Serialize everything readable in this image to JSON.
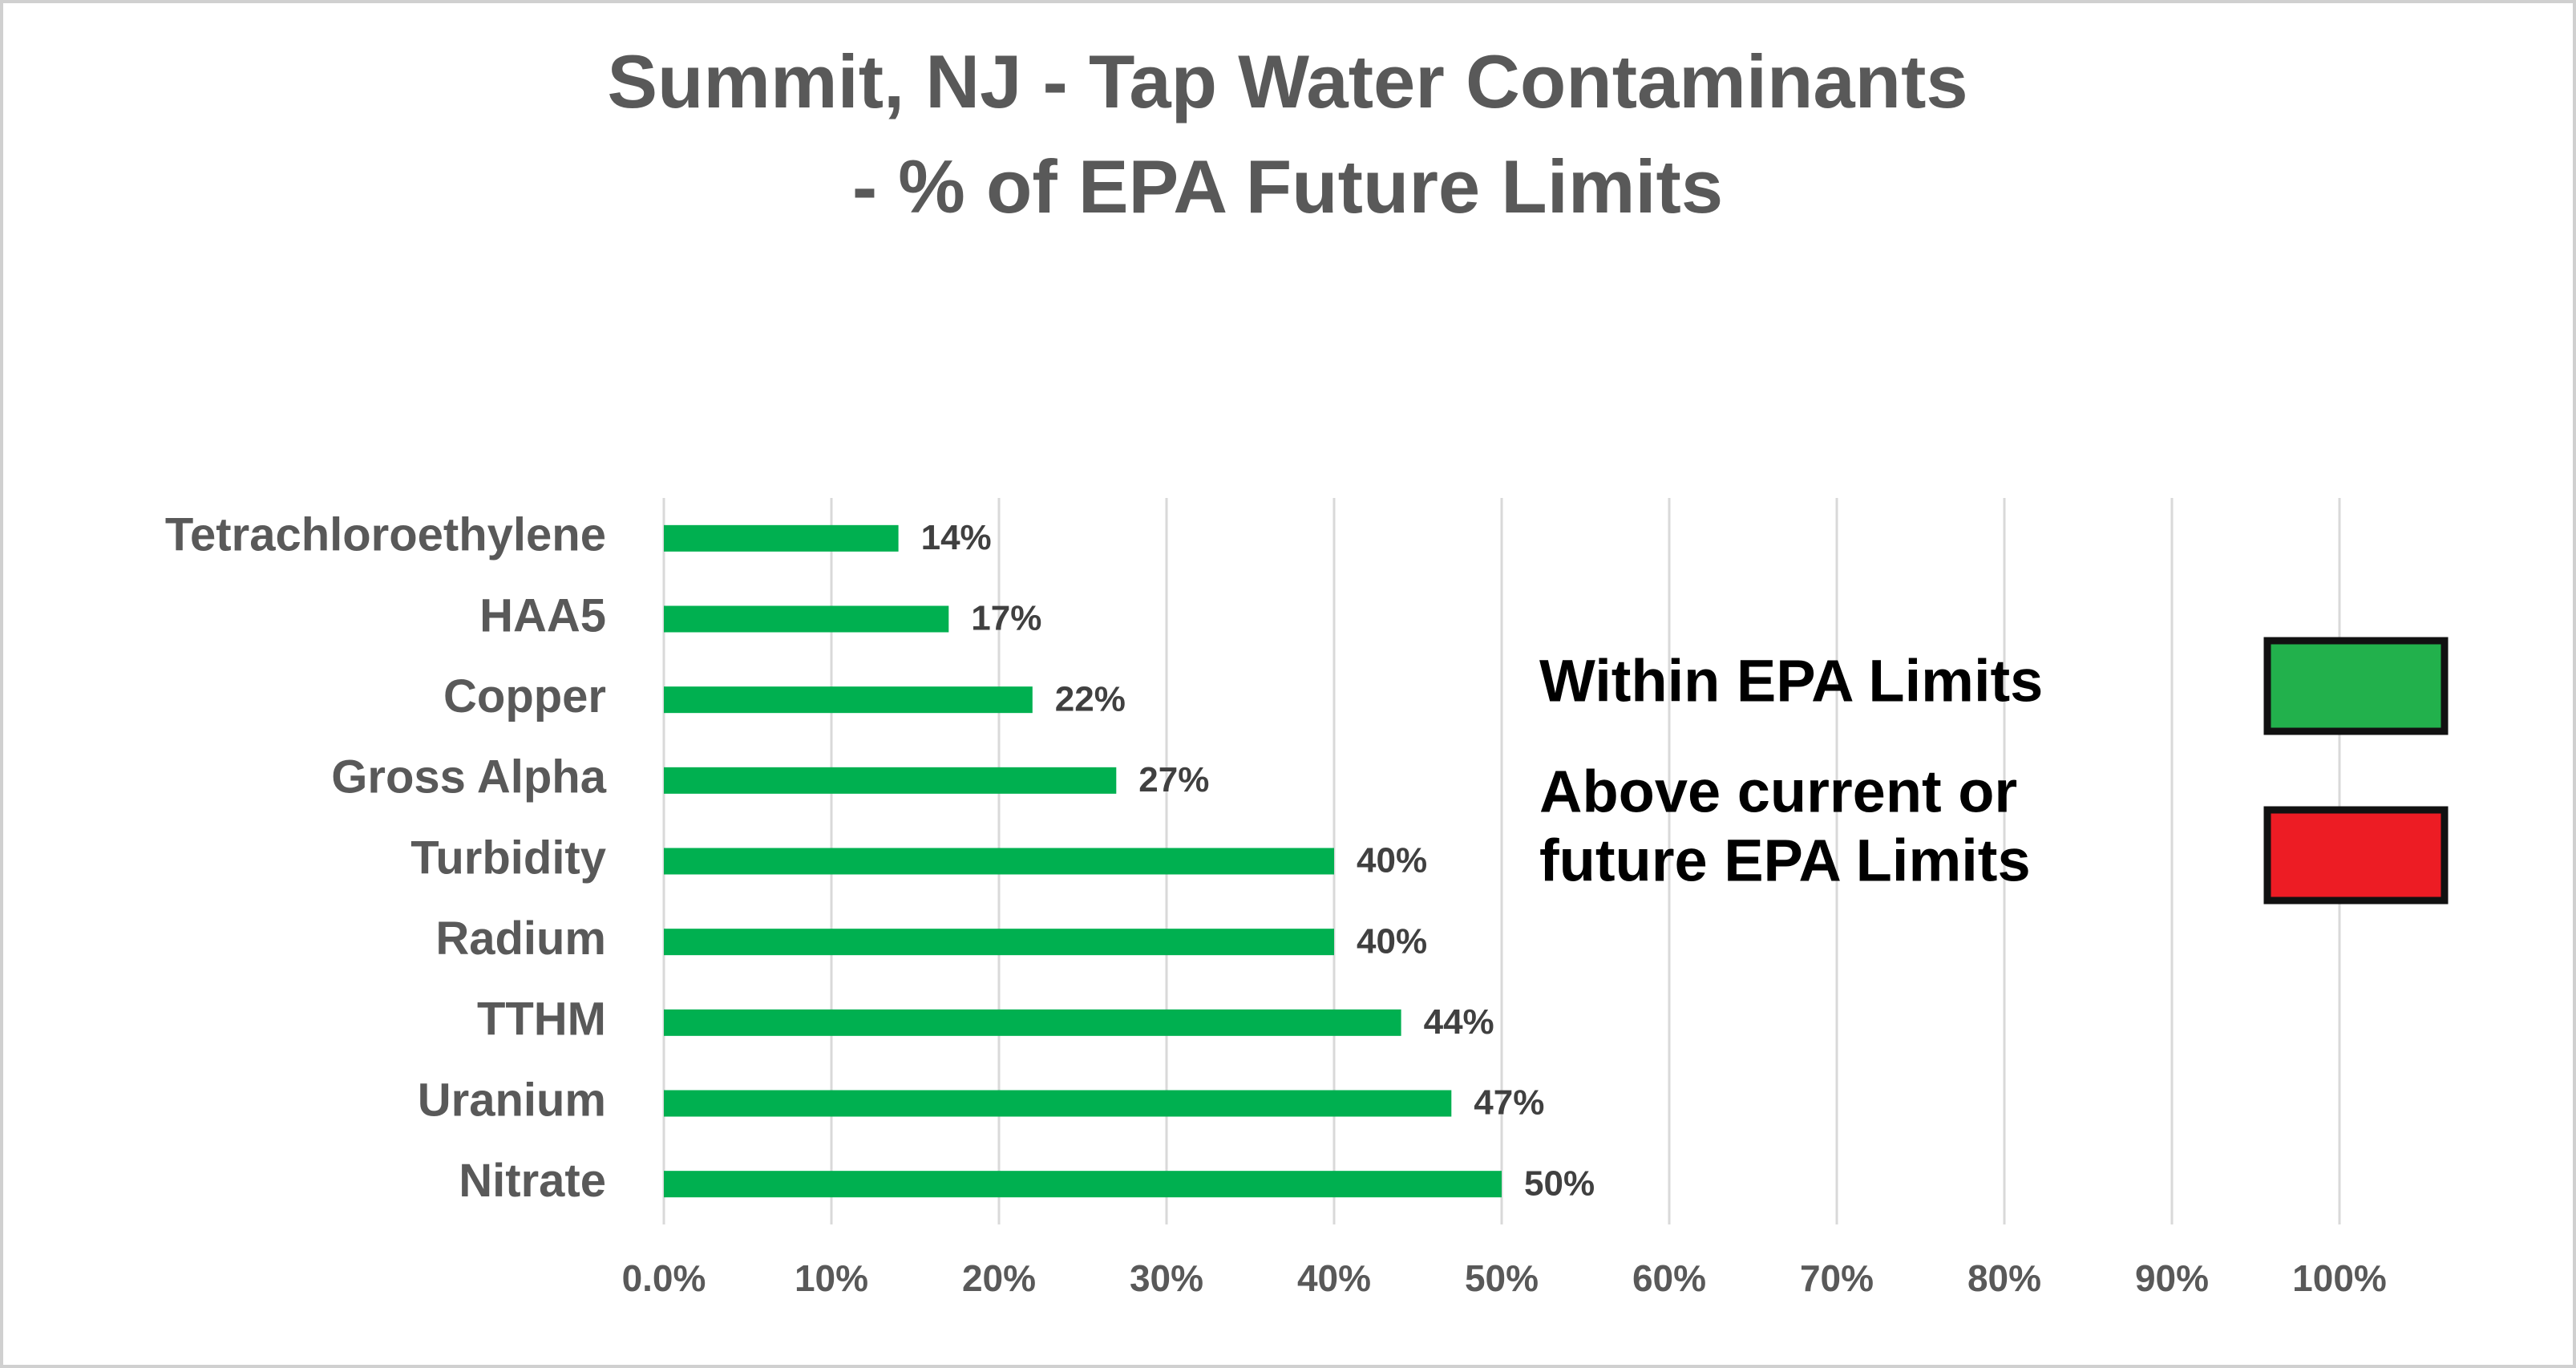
{
  "chart_data": {
    "type": "hbar",
    "title": [
      "Summit, NJ - Tap Water Contaminants",
      "- % of EPA Future Limits"
    ],
    "categories": [
      "Tetrachloroethylene",
      "HAA5",
      "Copper",
      "Gross Alpha",
      "Turbidity",
      "Radium",
      "TTHM",
      "Uranium",
      "Nitrate"
    ],
    "values": [
      14,
      17,
      22,
      27,
      40,
      40,
      44,
      47,
      50
    ],
    "value_labels": [
      "14%",
      "17%",
      "22%",
      "27%",
      "40%",
      "40%",
      "44%",
      "47%",
      "50%"
    ],
    "color": "#00b050",
    "xlim": [
      0,
      100
    ],
    "xticks": [
      {
        "value": 0,
        "label": "0.0%"
      },
      {
        "value": 10,
        "label": "10%"
      },
      {
        "value": 20,
        "label": "20%"
      },
      {
        "value": 30,
        "label": "30%"
      },
      {
        "value": 40,
        "label": "40%"
      },
      {
        "value": 50,
        "label": "50%"
      },
      {
        "value": 60,
        "label": "60%"
      },
      {
        "value": 70,
        "label": "70%"
      },
      {
        "value": 80,
        "label": "80%"
      },
      {
        "value": 90,
        "label": "90%"
      },
      {
        "value": 100,
        "label": "100%"
      }
    ],
    "grid": true,
    "legend_items": [
      {
        "label": [
          "Within EPA Limits"
        ],
        "color": "#22b14c"
      },
      {
        "label": [
          "Above current or",
          "future EPA Limits"
        ],
        "color": "#ed1c24"
      }
    ]
  }
}
